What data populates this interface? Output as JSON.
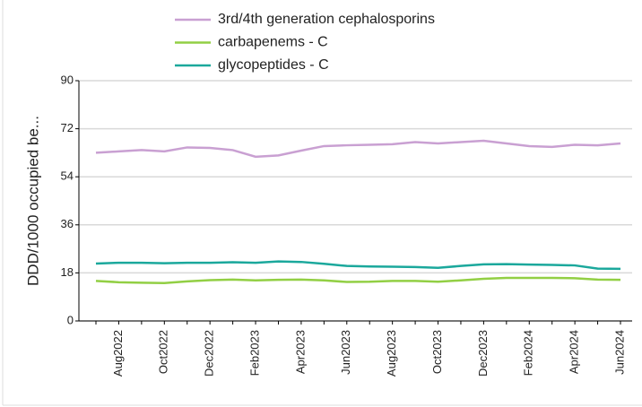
{
  "chart_data": {
    "type": "line",
    "ylabel": "DDD/1000  occupied  be...",
    "categories": [
      null,
      "Aug2022",
      null,
      "Oct2022",
      null,
      "Dec2022",
      null,
      "Feb2023",
      null,
      "Apr2023",
      null,
      "Jun2023",
      null,
      "Aug2023",
      null,
      "Oct2023",
      null,
      "Dec2023",
      null,
      "Feb2024",
      null,
      "Apr2024",
      null,
      "Jun2024"
    ],
    "series": [
      {
        "name": "3rd/4th generation cephalosporins",
        "color": "#c9a0d2",
        "values": [
          63,
          63.5,
          64,
          63.5,
          65,
          64.8,
          64,
          61.5,
          62,
          63.8,
          65.5,
          65.8,
          66,
          66.2,
          67,
          66.5,
          67,
          67.5,
          66.5,
          65.5,
          65.2,
          66,
          65.8,
          66.5
        ]
      },
      {
        "name": "carbapenems - C",
        "color": "#92cf44",
        "values": [
          15,
          14.5,
          14.3,
          14.2,
          14.8,
          15.3,
          15.5,
          15.2,
          15.4,
          15.5,
          15.2,
          14.6,
          14.7,
          15,
          15,
          14.7,
          15.2,
          15.8,
          16.1,
          16.1,
          16.1,
          16,
          15.5,
          15.4
        ]
      },
      {
        "name": "glycopeptides - C",
        "color": "#1ba89c",
        "values": [
          21.5,
          21.8,
          21.8,
          21.6,
          21.8,
          21.8,
          22,
          21.8,
          22.3,
          22.1,
          21.4,
          20.6,
          20.4,
          20.3,
          20.2,
          19.9,
          20.6,
          21.2,
          21.3,
          21.1,
          21,
          20.8,
          19.6,
          19.5
        ]
      }
    ],
    "ylim": [
      0,
      90
    ],
    "yticks": [
      0,
      18,
      36,
      54,
      72,
      90
    ],
    "grid": true
  }
}
